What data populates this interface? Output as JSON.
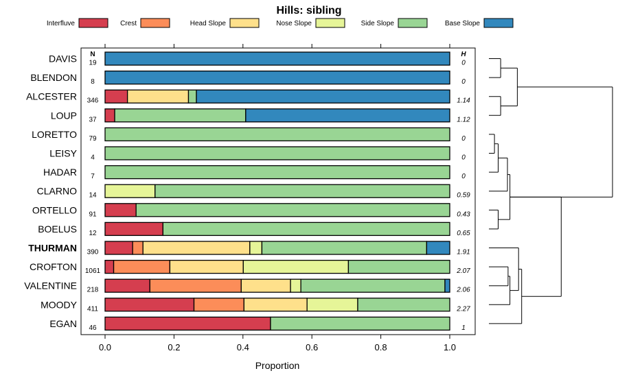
{
  "chart_data": {
    "type": "bar",
    "subtype": "stacked-horizontal-proportion",
    "title": "Hills: sibling",
    "xlabel": "Proportion",
    "ylabel": "",
    "xlim": [
      0,
      1
    ],
    "xticks": [
      "0.0",
      "0.2",
      "0.4",
      "0.6",
      "0.8",
      "1.0"
    ],
    "n_header": "N",
    "h_header": "H",
    "legend": [
      {
        "name": "Interfluve",
        "color": "#d53e4f"
      },
      {
        "name": "Crest",
        "color": "#fc8d59"
      },
      {
        "name": "Head Slope",
        "color": "#fee08b"
      },
      {
        "name": "Nose Slope",
        "color": "#e6f598"
      },
      {
        "name": "Side Slope",
        "color": "#99d594"
      },
      {
        "name": "Base Slope",
        "color": "#3288bd"
      }
    ],
    "categories": [
      "DAVIS",
      "BLENDON",
      "ALCESTER",
      "LOUP",
      "LORETTO",
      "LEISY",
      "HADAR",
      "CLARNO",
      "ORTELLO",
      "BOELUS",
      "THURMAN",
      "CROFTON",
      "VALENTINE",
      "MOODY",
      "EGAN"
    ],
    "highlight": "THURMAN",
    "n": [
      "19",
      "8",
      "346",
      "37",
      "79",
      "4",
      "7",
      "14",
      "91",
      "12",
      "390",
      "1061",
      "218",
      "411",
      "46"
    ],
    "h": [
      "0",
      "0",
      "1.14",
      "1.12",
      "0",
      "0",
      "0",
      "0.59",
      "0.43",
      "0.65",
      "1.91",
      "2.07",
      "2.06",
      "2.27",
      "1"
    ],
    "series": [
      {
        "name": "Interfluve",
        "values": [
          0,
          0,
          0.065,
          0.028,
          0,
          0,
          0,
          0,
          0.09,
          0.168,
          0.08,
          0.025,
          0.13,
          0.258,
          0.48
        ]
      },
      {
        "name": "Crest",
        "values": [
          0,
          0,
          0,
          0,
          0,
          0,
          0,
          0,
          0,
          0,
          0.03,
          0.163,
          0.265,
          0.145,
          0
        ]
      },
      {
        "name": "Head Slope",
        "values": [
          0,
          0,
          0.177,
          0,
          0,
          0,
          0,
          0,
          0,
          0,
          0.31,
          0.213,
          0.143,
          0.183,
          0
        ]
      },
      {
        "name": "Nose Slope",
        "values": [
          0,
          0,
          0,
          0,
          0,
          0,
          0,
          0.145,
          0,
          0,
          0.035,
          0.305,
          0.03,
          0.147,
          0
        ]
      },
      {
        "name": "Side Slope",
        "values": [
          0,
          0,
          0.023,
          0.38,
          1,
          1,
          1,
          0.855,
          0.91,
          0.832,
          0.478,
          0.294,
          0.418,
          0.267,
          0.52
        ]
      },
      {
        "name": "Base Slope",
        "values": [
          1,
          1,
          0.735,
          0.592,
          0,
          0,
          0,
          0,
          0,
          0,
          0.067,
          0,
          0.014,
          0,
          0
        ]
      }
    ],
    "dendrogram": {
      "note": "hierarchical clustering of rows; merge heights in relative units",
      "merges": [
        {
          "a": "DAVIS",
          "b": "BLENDON",
          "height": 0.095
        },
        {
          "a": "ALCESTER",
          "b": "LOUP",
          "height": 0.095
        },
        {
          "a": "DAVIS+BLENDON",
          "b": "ALCESTER+LOUP",
          "height": 0.23
        },
        {
          "a": "LORETTO",
          "b": "LEISY",
          "height": 0.045
        },
        {
          "a": "LORETTO+LEISY",
          "b": "HADAR",
          "height": 0.075
        },
        {
          "a": "LORETTO+LEISY+HADAR",
          "b": "CLARNO",
          "height": 0.15
        },
        {
          "a": "ORTELLO",
          "b": "BOELUS",
          "height": 0.075
        },
        {
          "a": "CLARNO-group",
          "b": "ORTELLO+BOELUS",
          "height": 0.17
        },
        {
          "a": "CROFTON",
          "b": "VALENTINE",
          "height": 0.155
        },
        {
          "a": "CROFTON+VALENTINE",
          "b": "MOODY",
          "height": 0.17
        },
        {
          "a": "THURMAN",
          "b": "CROFTON+VALENTINE+MOODY",
          "height": 0.24
        },
        {
          "a": "THURMAN-group",
          "b": "EGAN",
          "height": 0.265
        },
        {
          "a": "LORETTO-group",
          "b": "THURMAN-group",
          "height": 0.585
        },
        {
          "a": "DAVIS-group",
          "b": "LORETTO-group",
          "height": 1.0
        }
      ]
    }
  }
}
